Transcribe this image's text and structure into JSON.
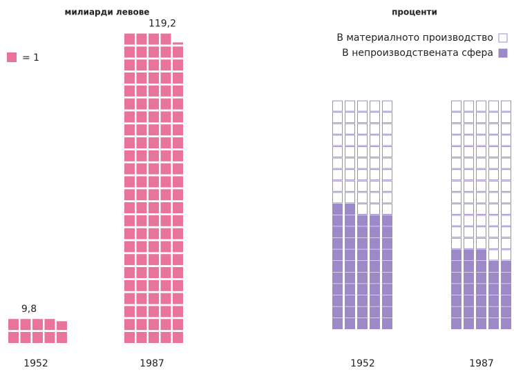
{
  "chart_data": [
    {
      "type": "pictogram",
      "title": "милиарди левове",
      "legend_label": "= 1",
      "unit": 1,
      "categories": [
        "1952",
        "1987"
      ],
      "values": [
        9.8,
        119.2
      ],
      "value_labels": [
        "9,8",
        "119,2"
      ],
      "color": "#e8749b"
    },
    {
      "type": "percent-pictogram",
      "title": "проценти",
      "categories": [
        "1952",
        "1987"
      ],
      "series": [
        {
          "name": "В материалното производство",
          "color": "#ffffff",
          "values": [
            48,
            67
          ]
        },
        {
          "name": "В непроизводствената сфера",
          "color": "#9d88c8",
          "values": [
            52,
            33
          ]
        }
      ]
    }
  ]
}
